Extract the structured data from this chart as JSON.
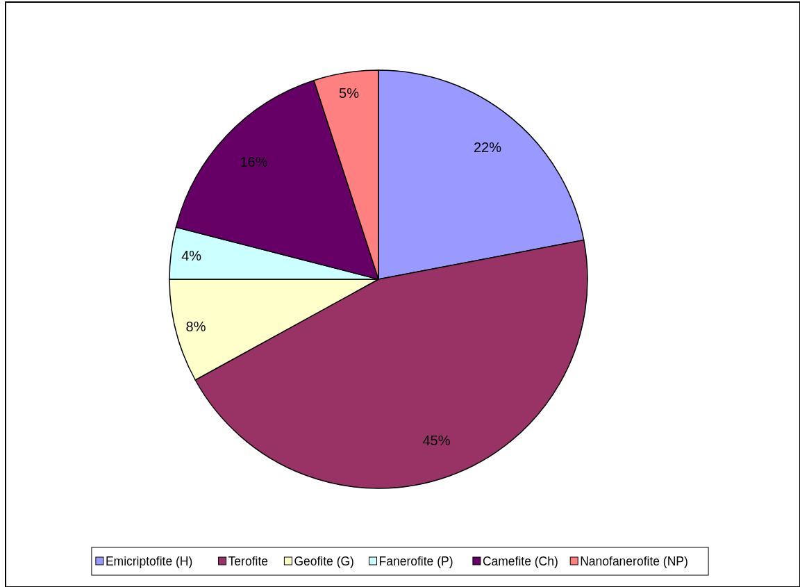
{
  "chart_data": {
    "type": "pie",
    "categories": [
      "Emicriptofite (H)",
      "Terofite",
      "Geofite (G)",
      "Fanerofite (P)",
      "Camefite (Ch)",
      "Nanofanerofite (NP)"
    ],
    "values": [
      22,
      45,
      8,
      4,
      16,
      5
    ],
    "value_labels": [
      "22%",
      "45%",
      "8%",
      "4%",
      "16%",
      "5%"
    ],
    "colors": [
      "#9999ff",
      "#993366",
      "#ffffcc",
      "#ccffff",
      "#660066",
      "#ff8080"
    ],
    "legend": "bottom"
  }
}
